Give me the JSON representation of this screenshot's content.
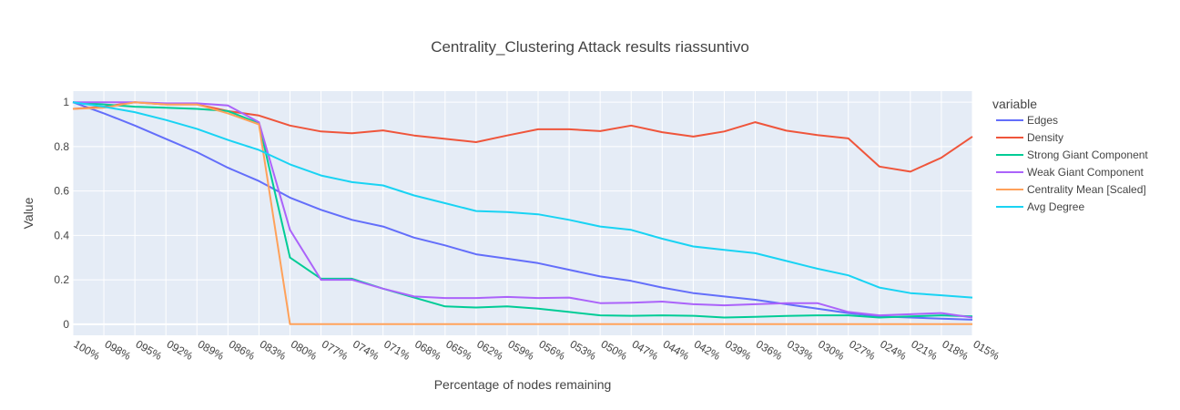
{
  "chart_data": {
    "type": "line",
    "title": "Centrality_Clustering Attack results riassuntivo",
    "xlabel": "Percentage of nodes remaining",
    "ylabel": "Value",
    "legend_title": "variable",
    "legend_position": "right",
    "grid": true,
    "ylim": [
      -0.05,
      1.05
    ],
    "y_ticks": [
      0,
      0.2,
      0.4,
      0.6,
      0.8,
      1
    ],
    "y_tick_labels": [
      "0",
      "0.2",
      "0.4",
      "0.6",
      "0.8",
      "1"
    ],
    "categories": [
      "100%",
      "098%",
      "095%",
      "092%",
      "089%",
      "086%",
      "083%",
      "080%",
      "077%",
      "074%",
      "071%",
      "068%",
      "065%",
      "062%",
      "059%",
      "056%",
      "053%",
      "050%",
      "047%",
      "044%",
      "042%",
      "039%",
      "036%",
      "033%",
      "030%",
      "027%",
      "024%",
      "021%",
      "018%",
      "015%"
    ],
    "series": [
      {
        "name": "Edges",
        "color": "#636efa",
        "values": [
          1.0,
          0.95,
          0.895,
          0.835,
          0.775,
          0.705,
          0.645,
          0.57,
          0.515,
          0.47,
          0.44,
          0.39,
          0.355,
          0.315,
          0.295,
          0.275,
          0.245,
          0.215,
          0.195,
          0.165,
          0.14,
          0.125,
          0.11,
          0.09,
          0.07,
          0.05,
          0.035,
          0.03,
          0.025,
          0.02
        ]
      },
      {
        "name": "Density",
        "color": "#ef553b",
        "values": [
          0.97,
          0.98,
          1.0,
          0.99,
          0.99,
          0.96,
          0.94,
          0.895,
          0.868,
          0.86,
          0.873,
          0.85,
          0.835,
          0.82,
          0.85,
          0.878,
          0.878,
          0.87,
          0.895,
          0.865,
          0.845,
          0.868,
          0.91,
          0.872,
          0.852,
          0.837,
          0.71,
          0.687,
          0.75,
          0.845
        ]
      },
      {
        "name": "Strong Giant Component",
        "color": "#00cc96",
        "values": [
          1.0,
          0.99,
          0.98,
          0.975,
          0.97,
          0.96,
          0.905,
          0.3,
          0.205,
          0.205,
          0.16,
          0.12,
          0.08,
          0.075,
          0.08,
          0.07,
          0.055,
          0.04,
          0.038,
          0.04,
          0.038,
          0.03,
          0.033,
          0.037,
          0.04,
          0.04,
          0.03,
          0.035,
          0.04,
          0.035
        ]
      },
      {
        "name": "Weak Giant Component",
        "color": "#ab63fa",
        "values": [
          1.0,
          1.0,
          1.0,
          0.995,
          0.995,
          0.985,
          0.91,
          0.425,
          0.2,
          0.2,
          0.16,
          0.125,
          0.118,
          0.118,
          0.123,
          0.118,
          0.12,
          0.095,
          0.097,
          0.102,
          0.09,
          0.085,
          0.09,
          0.095,
          0.095,
          0.055,
          0.04,
          0.045,
          0.05,
          0.03
        ]
      },
      {
        "name": "Centrality Mean [Scaled]",
        "color": "#ffa15a",
        "values": [
          0.97,
          0.975,
          1.0,
          0.99,
          0.99,
          0.95,
          0.9,
          0.0,
          0.0,
          0.0,
          0.0,
          0.0,
          0.0,
          0.0,
          0.0,
          0.0,
          0.0,
          0.0,
          0.0,
          0.0,
          0.0,
          0.0,
          0.0,
          0.0,
          0.0,
          0.0,
          0.0,
          0.0,
          0.0,
          0.0
        ]
      },
      {
        "name": "Avg Degree",
        "color": "#19d3f3",
        "values": [
          1.0,
          0.98,
          0.955,
          0.92,
          0.88,
          0.83,
          0.785,
          0.72,
          0.67,
          0.64,
          0.625,
          0.58,
          0.545,
          0.51,
          0.505,
          0.495,
          0.47,
          0.44,
          0.425,
          0.385,
          0.35,
          0.335,
          0.32,
          0.285,
          0.25,
          0.22,
          0.165,
          0.14,
          0.13,
          0.12
        ]
      }
    ]
  }
}
